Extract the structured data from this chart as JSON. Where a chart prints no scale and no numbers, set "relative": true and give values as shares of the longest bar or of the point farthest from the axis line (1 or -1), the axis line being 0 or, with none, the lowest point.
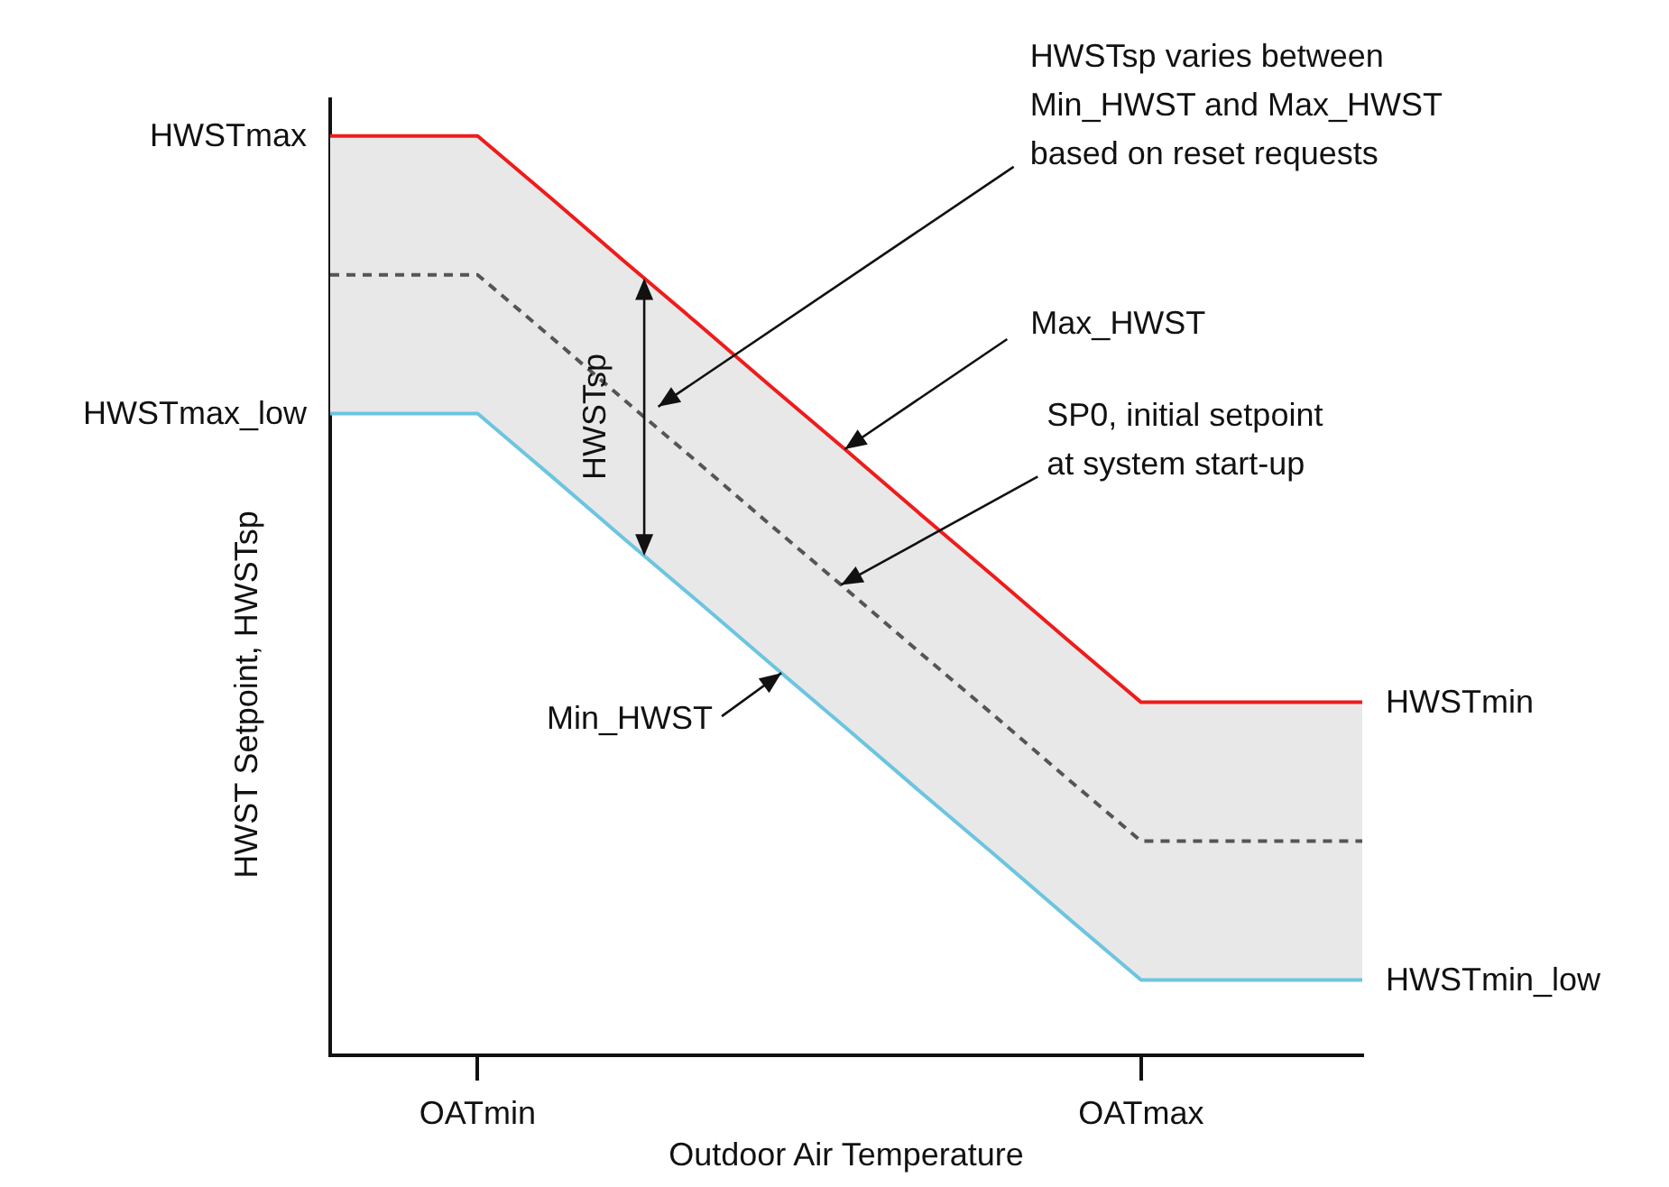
{
  "chart_data": {
    "type": "line",
    "relative": true,
    "xlabel": "Outdoor Air Temperature",
    "ylabel": "HWST Setpoint, HWSTsp",
    "categories": [
      null,
      null,
      "OATmin",
      null,
      null,
      null,
      null,
      null,
      null,
      null,
      null,
      "OATmax",
      null,
      null,
      null
    ],
    "series": [
      {
        "color": "#ee1c1c",
        "values": [
          1,
          1,
          1,
          0.932,
          0.863,
          0.795,
          0.726,
          0.658,
          0.589,
          0.521,
          0.452,
          0.384,
          0.384,
          0.384,
          0.384
        ]
      },
      {
        "color": "#555555",
        "line_style": "dashed",
        "values": [
          0.849,
          0.849,
          0.849,
          0.781,
          0.712,
          0.644,
          0.575,
          0.507,
          0.438,
          0.37,
          0.301,
          0.233,
          0.233,
          0.233,
          0.233
        ],
        "upper": [
          1,
          1,
          1,
          0.932,
          0.863,
          0.795,
          0.726,
          0.658,
          0.589,
          0.521,
          0.452,
          0.384,
          0.384,
          0.384,
          0.384
        ],
        "lower": [
          0.698,
          0.698,
          0.698,
          0.63,
          0.561,
          0.493,
          0.424,
          0.356,
          0.287,
          0.219,
          0.15,
          0.082,
          0.082,
          0.082,
          0.082
        ]
      },
      {
        "color": "#6cc5e0",
        "values": [
          0.698,
          0.698,
          0.698,
          0.63,
          0.561,
          0.493,
          0.424,
          0.356,
          0.287,
          0.219,
          0.15,
          0.082,
          0.082,
          0.082,
          0.082
        ]
      }
    ],
    "annotations": [
      "HWSTsp varies between\nMin_HWST and Max_HWST\nbased on reset requests",
      "Max_HWST",
      "SP0, initial setpoint\nat system start-up",
      "Min_HWST",
      "HWSTsp",
      "HWSTmax",
      "HWSTmax_low",
      "HWSTmin",
      "HWSTmin_low"
    ],
    "grid": false,
    "legend": false,
    "marker": "none"
  }
}
